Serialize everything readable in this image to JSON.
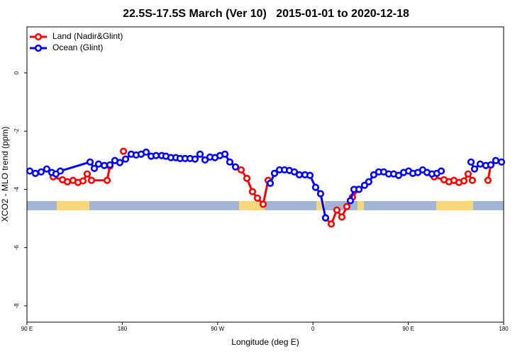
{
  "chart_data": {
    "type": "line",
    "title": "22.5S-17.5S March (Ver 10)   2015-01-01 to 2020-12-18",
    "x_label": "Longitude (deg E)",
    "y_label": "XCO2 - MLO trend (ppm)",
    "xlim": [
      90,
      540
    ],
    "ylim": [
      -8.56,
      1.58
    ],
    "xticks": [
      {
        "value": 90,
        "label": "90 E"
      },
      180,
      {
        "value": 270,
        "label": "90 W"
      },
      {
        "value": 360,
        "label": "0"
      },
      {
        "value": 450,
        "label": "90 E"
      },
      {
        "value": 540,
        "label": "180"
      }
    ],
    "yticks": [
      0,
      -2,
      -4,
      -6,
      -8
    ],
    "legend": "top-left",
    "series": [
      {
        "name": "Land (Nadir&Glint)",
        "color": "#ff0000",
        "x": [
          114.8,
          123.5,
          128.2,
          133.5,
          138.2,
          142.9,
          146.9,
          150.9,
          165.7,
          168.3,
          null,
          181.1,
          null,
          292.2,
          297.6,
          302.9,
          307.6,
          313.0,
          317.7,
          null,
          371.9,
          377.3,
          382.6,
          387.3,
          392.0,
          397.3,
          402.7,
          null,
          474.4,
          483.7,
          488.4,
          493.1,
          497.8,
          502.5,
          506.5,
          510.5,
          null,
          525.2,
          527.9
        ],
        "values": [
          -3.57,
          -3.67,
          -3.74,
          -3.69,
          -3.76,
          -3.71,
          -3.47,
          -3.69,
          -3.69,
          -3.2,
          null,
          -2.69,
          null,
          -3.33,
          -3.62,
          -4.08,
          -4.3,
          -4.51,
          -3.69,
          null,
          -4.98,
          -5.19,
          -4.71,
          -4.95,
          -4.59,
          -4.27,
          -4.0,
          null,
          -3.57,
          -3.67,
          -3.74,
          -3.69,
          -3.76,
          -3.71,
          -3.47,
          -3.69,
          null,
          -3.69,
          -3.16
        ]
      },
      {
        "name": "Ocean (Glint)",
        "color": "#0000ff",
        "x": [
          92.7,
          98.0,
          103.4,
          108.7,
          113.4,
          117.4,
          121.5,
          149.6,
          153.6,
          157.6,
          163.0,
          168.3,
          173.0,
          177.7,
          183.1,
          188.4,
          193.1,
          197.8,
          202.5,
          207.2,
          211.9,
          217.2,
          221.2,
          225.9,
          230.6,
          234.6,
          239.3,
          244.0,
          248.7,
          253.4,
          258.1,
          262.8,
          267.5,
          272.2,
          276.9,
          281.5,
          286.9,
          null,
          319.7,
          323.7,
          328.4,
          333.1,
          337.8,
          342.4,
          347.1,
          352.5,
          357.2,
          362.5,
          367.2,
          371.9,
          null,
          395.3,
          398.7,
          403.4,
          408.7,
          412.7,
          417.4,
          422.1,
          426.8,
          431.5,
          436.2,
          440.9,
          445.6,
          450.3,
          454.3,
          459.0,
          463.6,
          467.7,
          472.3,
          477.0,
          481.1,
          null,
          509.2,
          512.5,
          517.9,
          523.2,
          527.9,
          532.6,
          538.0
        ],
        "values": [
          -3.37,
          -3.45,
          -3.4,
          -3.3,
          -3.42,
          -3.47,
          -3.37,
          -3.06,
          -3.28,
          -3.13,
          -3.18,
          -3.16,
          -3.01,
          -3.08,
          -2.96,
          -2.79,
          -2.82,
          -2.79,
          -2.72,
          -2.86,
          -2.84,
          -2.84,
          -2.86,
          -2.91,
          -2.91,
          -2.94,
          -2.94,
          -2.94,
          -2.96,
          -2.79,
          -2.99,
          -2.89,
          -2.91,
          -2.84,
          -2.79,
          -3.06,
          -3.23,
          null,
          -3.79,
          -3.45,
          -3.33,
          -3.33,
          -3.35,
          -3.4,
          -3.5,
          -3.5,
          -3.52,
          -3.93,
          -4.15,
          -4.98,
          null,
          -4.39,
          -4.0,
          -4.0,
          -3.86,
          -3.74,
          -3.5,
          -3.4,
          -3.4,
          -3.47,
          -3.47,
          -3.52,
          -3.42,
          -3.37,
          -3.45,
          -3.42,
          -3.33,
          -3.42,
          -3.47,
          -3.45,
          -3.37,
          null,
          -3.06,
          -3.3,
          -3.13,
          -3.18,
          -3.16,
          -3.01,
          -3.06
        ]
      }
    ]
  }
}
